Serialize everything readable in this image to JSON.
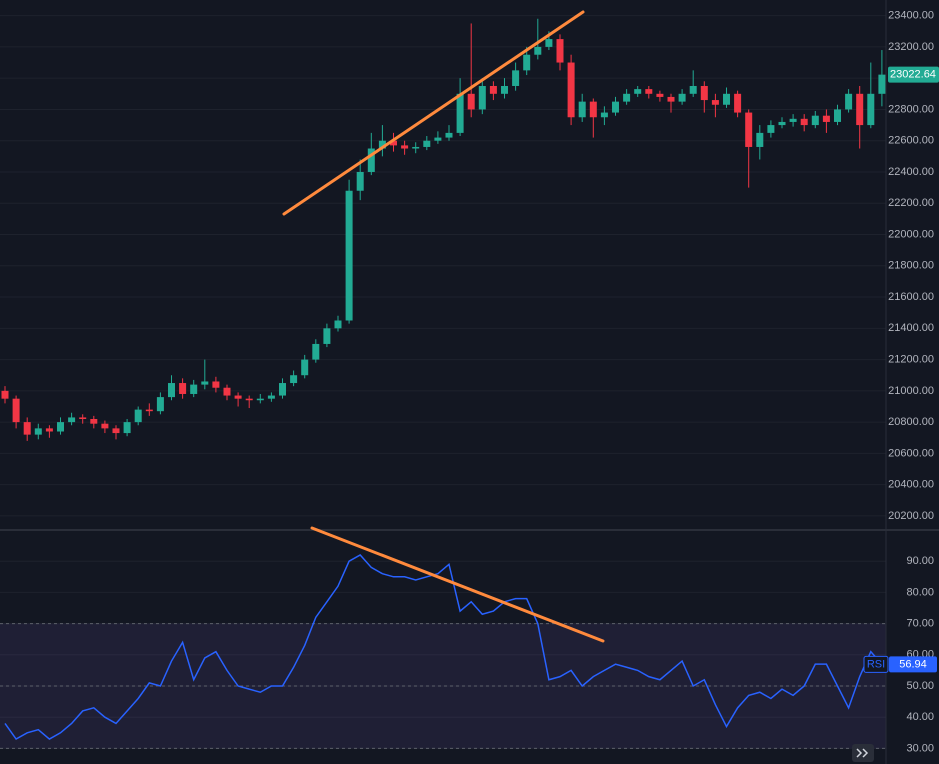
{
  "chart_data": [
    {
      "type": "candlestick",
      "up_color": "#22ab94",
      "down_color": "#f23645",
      "grid": true,
      "ylim": [
        20110,
        23500
      ],
      "yticks": [
        {
          "value": 20200,
          "label": "20200.00"
        },
        {
          "value": 20400,
          "label": "20400.00"
        },
        {
          "value": 20600,
          "label": "20600.00"
        },
        {
          "value": 20800,
          "label": "20800.00"
        },
        {
          "value": 21000,
          "label": "21000.00"
        },
        {
          "value": 21200,
          "label": "21200.00"
        },
        {
          "value": 21400,
          "label": "21400.00"
        },
        {
          "value": 21600,
          "label": "21600.00"
        },
        {
          "value": 21800,
          "label": "21800.00"
        },
        {
          "value": 22000,
          "label": "22000.00"
        },
        {
          "value": 22200,
          "label": "22200.00"
        },
        {
          "value": 22400,
          "label": "22400.00"
        },
        {
          "value": 22600,
          "label": "22600.00"
        },
        {
          "value": 22800,
          "label": "22800.00"
        },
        {
          "value": 23000,
          "label": "23000.00"
        },
        {
          "value": 23200,
          "label": "23200.00"
        },
        {
          "value": 23400,
          "label": "23400.00"
        }
      ],
      "open": [
        21000,
        20950,
        20800,
        20720,
        20760,
        20740,
        20800,
        20830,
        20820,
        20790,
        20760,
        20730,
        20800,
        20880,
        20870,
        20960,
        21050,
        20980,
        21040,
        21060,
        21020,
        20970,
        20950,
        20940,
        20950,
        20970,
        21050,
        21100,
        21200,
        21300,
        21400,
        21450,
        22280,
        22400,
        22550,
        22600,
        22570,
        22550,
        22560,
        22600,
        22620,
        22650,
        22900,
        22800,
        22950,
        22900,
        22950,
        23050,
        23150,
        23200,
        23250,
        23100,
        22750,
        22850,
        22750,
        22780,
        22850,
        22900,
        22930,
        22900,
        22880,
        22850,
        22900,
        22950,
        22860,
        22830,
        22900,
        22780,
        22560,
        22650,
        22700,
        22720,
        22740,
        22700,
        22760,
        22720,
        22800,
        22900,
        22700,
        22900
      ],
      "high": [
        21030,
        20970,
        20830,
        20790,
        20780,
        20830,
        20860,
        20850,
        20840,
        20810,
        20780,
        20820,
        20900,
        20920,
        20990,
        21100,
        21080,
        21070,
        21200,
        21090,
        21040,
        20990,
        20970,
        20980,
        20990,
        21080,
        21130,
        21230,
        21330,
        21430,
        21480,
        22350,
        22480,
        22650,
        22700,
        22650,
        22600,
        22590,
        22630,
        22660,
        22700,
        23000,
        23350,
        23000,
        22980,
        23000,
        23100,
        23200,
        23380,
        23300,
        23280,
        23150,
        22900,
        22870,
        22820,
        22880,
        22930,
        22950,
        22950,
        22920,
        22900,
        22930,
        23050,
        22980,
        22900,
        22940,
        22920,
        22800,
        22700,
        22730,
        22750,
        22770,
        22770,
        22790,
        22800,
        22830,
        22930,
        22950,
        23100,
        23180
      ],
      "low": [
        20920,
        20760,
        20680,
        20690,
        20700,
        20720,
        20780,
        20790,
        20760,
        20730,
        20690,
        20710,
        20780,
        20840,
        20850,
        20940,
        20950,
        20960,
        21010,
        20990,
        20940,
        20900,
        20890,
        20920,
        20930,
        20950,
        21030,
        21080,
        21180,
        21280,
        21380,
        21430,
        22220,
        22380,
        22500,
        22530,
        22510,
        22520,
        22540,
        22580,
        22600,
        22630,
        22750,
        22770,
        22860,
        22870,
        22920,
        23020,
        23120,
        23180,
        23050,
        22700,
        22720,
        22620,
        22700,
        22760,
        22830,
        22880,
        22870,
        22850,
        22780,
        22830,
        22880,
        22780,
        22750,
        22810,
        22750,
        22300,
        22480,
        22620,
        22680,
        22690,
        22660,
        22680,
        22650,
        22700,
        22780,
        22550,
        22680,
        22820
      ],
      "close": [
        20950,
        20800,
        20720,
        20760,
        20740,
        20800,
        20830,
        20820,
        20790,
        20760,
        20730,
        20800,
        20880,
        20870,
        20960,
        21050,
        20980,
        21040,
        21060,
        21020,
        20970,
        20950,
        20940,
        20950,
        20970,
        21050,
        21100,
        21200,
        21300,
        21400,
        21450,
        22280,
        22400,
        22550,
        22600,
        22570,
        22550,
        22560,
        22600,
        22620,
        22650,
        22900,
        22800,
        22950,
        22900,
        22950,
        23050,
        23150,
        23200,
        23250,
        23100,
        22750,
        22850,
        22750,
        22780,
        22850,
        22900,
        22930,
        22900,
        22880,
        22850,
        22900,
        22950,
        22860,
        22830,
        22900,
        22780,
        22560,
        22650,
        22700,
        22720,
        22740,
        22700,
        22760,
        22720,
        22800,
        22900,
        22700,
        22900,
        23022.64
      ]
    },
    {
      "type": "line",
      "grid": true,
      "ylim": [
        25,
        100
      ],
      "yticks": [
        {
          "value": 30,
          "label": "30.00"
        },
        {
          "value": 40,
          "label": "40.00"
        },
        {
          "value": 50,
          "label": "50.00"
        },
        {
          "value": 60,
          "label": "60.00"
        },
        {
          "value": 70,
          "label": "70.00"
        },
        {
          "value": 80,
          "label": "80.00"
        },
        {
          "value": 90,
          "label": "90.00"
        }
      ],
      "band": [
        30,
        70
      ],
      "levels": [
        70,
        50,
        30
      ],
      "series": [
        {
          "name": "RSI",
          "color": "#2962ff",
          "values": [
            38,
            33,
            35,
            36,
            33,
            35,
            38,
            42,
            43,
            40,
            38,
            42,
            46,
            51,
            50,
            58,
            64,
            52,
            59,
            61,
            55,
            50,
            49,
            48,
            50,
            50,
            56,
            63,
            72,
            77,
            82,
            90,
            92,
            88,
            86,
            85,
            85,
            84,
            85,
            86,
            89,
            74,
            77,
            73,
            74,
            77,
            78,
            78,
            70,
            52,
            53,
            55,
            50,
            53,
            55,
            57,
            56,
            55,
            53,
            52,
            55,
            58,
            50,
            52,
            44,
            37,
            43,
            47,
            48,
            46,
            49,
            47,
            50,
            57,
            57,
            50,
            43,
            53,
            61,
            56.94
          ]
        }
      ]
    }
  ]
}
